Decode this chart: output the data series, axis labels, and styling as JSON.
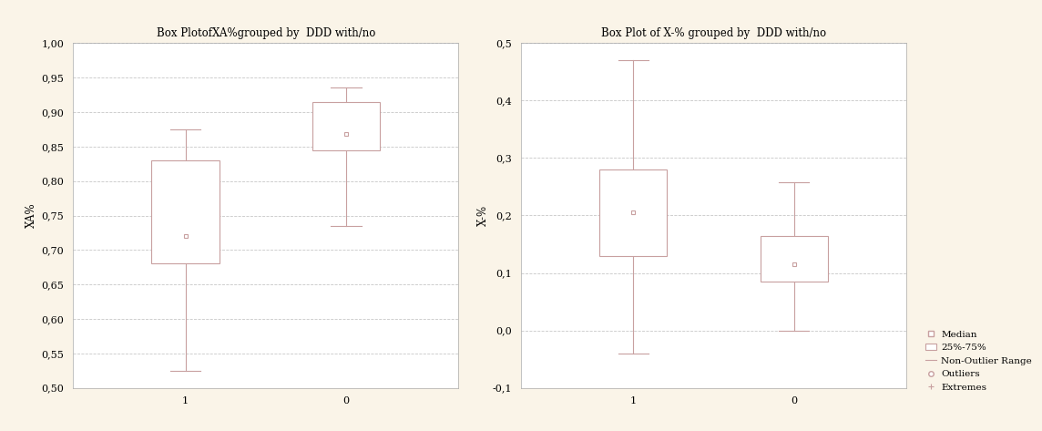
{
  "background_color": "#faf4e8",
  "plot_bg_color": "#ffffff",
  "box_color": "#c8a0a0",
  "grid_color": "#c8c8c8",
  "title1": "Box PlotofXA%grouped by  DDD with/no",
  "title2": "Box Plot of X-% grouped by  DDD with/no",
  "ylabel1": "XA%",
  "ylabel2": "X-%",
  "plot1": {
    "group1": {
      "q1": 0.68,
      "q3": 0.83,
      "median": 0.72,
      "whisker_low": 0.525,
      "whisker_high": 0.875
    },
    "group0": {
      "q1": 0.845,
      "q3": 0.915,
      "median": 0.868,
      "whisker_low": 0.735,
      "whisker_high": 0.935
    },
    "ylim": [
      0.5,
      1.0
    ],
    "yticks": [
      0.5,
      0.55,
      0.6,
      0.65,
      0.7,
      0.75,
      0.8,
      0.85,
      0.9,
      0.95,
      1.0
    ],
    "ytick_labels": [
      "0,50",
      "0,55",
      "0,60",
      "0,65",
      "0,70",
      "0,75",
      "0,80",
      "0,85",
      "0,90",
      "0,95",
      "1,00"
    ],
    "xtick_labels": [
      "1",
      "0"
    ]
  },
  "plot2": {
    "group1": {
      "q1": 0.13,
      "q3": 0.28,
      "median": 0.205,
      "whisker_low": -0.04,
      "whisker_high": 0.47
    },
    "group0": {
      "q1": 0.085,
      "q3": 0.165,
      "median": 0.115,
      "whisker_low": 0.0,
      "whisker_high": 0.258
    },
    "ylim": [
      -0.1,
      0.5
    ],
    "yticks": [
      -0.1,
      0.0,
      0.1,
      0.2,
      0.3,
      0.4,
      0.5
    ],
    "ytick_labels": [
      "-0,1",
      "0,0",
      "0,1",
      "0,2",
      "0,3",
      "0,4",
      "0,5"
    ],
    "xtick_labels": [
      "1",
      "0"
    ]
  },
  "legend_items": [
    "Median",
    "25%-75%",
    "Non-Outlier Range",
    "Outliers",
    "Extremes"
  ],
  "box_width": 0.42,
  "fontsize_title": 8.5,
  "fontsize_tick": 8,
  "fontsize_label": 8.5,
  "fontsize_legend": 7.5
}
